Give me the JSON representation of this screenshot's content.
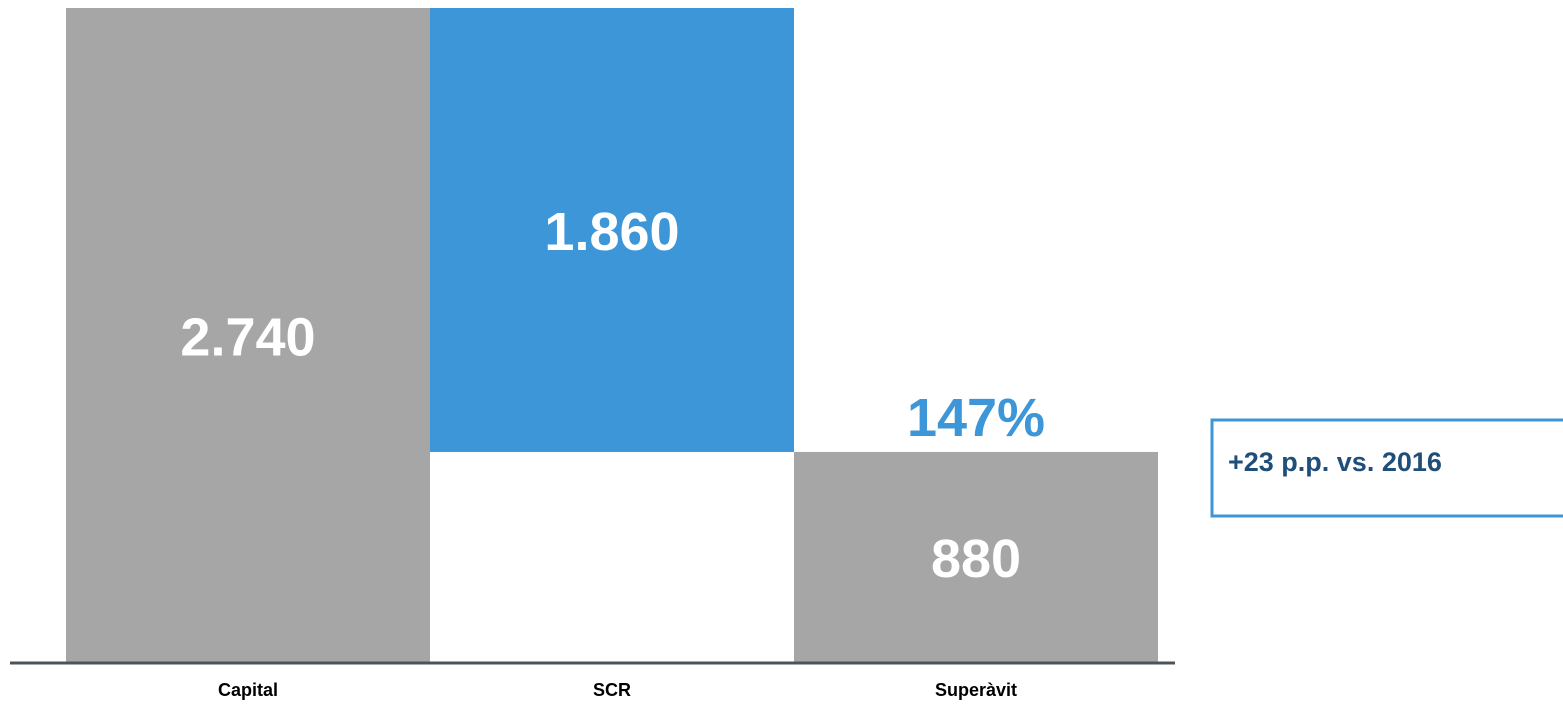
{
  "chart_data": {
    "type": "waterfall",
    "categories": [
      "Capital",
      "SCR",
      "Superàvit"
    ],
    "values": [
      2740,
      1860,
      880
    ],
    "value_labels": [
      "2.740",
      "1.860",
      "880"
    ],
    "colors": [
      "#a6a6a6",
      "#3d96d8",
      "#a6a6a6"
    ],
    "ylim": [
      0,
      2740
    ],
    "annotations": [
      "147%",
      "+23 p.p. vs. 2016"
    ]
  }
}
